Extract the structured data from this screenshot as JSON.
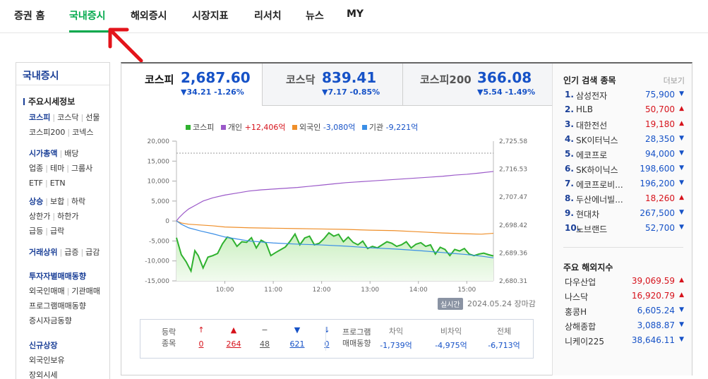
{
  "nav": {
    "items": [
      "증권 홈",
      "국내증시",
      "해외증시",
      "시장지표",
      "리서치",
      "뉴스",
      "MY"
    ],
    "active_index": 1
  },
  "sidebar": {
    "title": "국내증시",
    "section": "주요시세정보",
    "groups": [
      [
        [
          "코스피",
          "코스닥",
          "선물"
        ],
        [
          "코스피200",
          "코넥스"
        ]
      ],
      [
        [
          "시가총액",
          "배당"
        ],
        [
          "업종",
          "테마",
          "그룹사"
        ],
        [
          "ETF",
          "ETN"
        ]
      ],
      [
        [
          "상승",
          "보합",
          "하락"
        ],
        [
          "상한가",
          "하한가"
        ],
        [
          "급등",
          "급락"
        ]
      ],
      [
        [
          "거래상위",
          "급증",
          "급감"
        ]
      ],
      [
        [
          "투자자별매매동향"
        ],
        [
          "외국인매매",
          "기관매매"
        ],
        [
          "프로그램매매동향"
        ],
        [
          "증시자금동향"
        ]
      ],
      [
        [
          "신규상장"
        ],
        [
          "외국인보유"
        ],
        [
          "장외시세"
        ]
      ]
    ]
  },
  "tabs": [
    {
      "name": "코스피",
      "value": "2,687.60",
      "change": "▼34.21 -1.26%"
    },
    {
      "name": "코스닥",
      "value": "839.41",
      "change": "▼7.17 -0.85%"
    },
    {
      "name": "코스피200",
      "value": "366.08",
      "change": "▼5.54 -1.49%"
    }
  ],
  "legend": {
    "kospi": "코스피",
    "individual_label": "개인",
    "individual_value": "+12,406억",
    "foreign_label": "외국인",
    "foreign_value": "-3,080억",
    "institution_label": "기관",
    "institution_value": "-9,221억"
  },
  "chart_data": {
    "type": "line",
    "x_ticks": [
      "10:00",
      "11:00",
      "12:00",
      "13:00",
      "14:00",
      "15:00"
    ],
    "y_left_ticks": [
      "20,000",
      "15,000",
      "10,000",
      "5,000",
      "0",
      "-5,000",
      "-10,000",
      "-15,000"
    ],
    "y_left_range": [
      -15000,
      20000
    ],
    "y_right_ticks": [
      "2,725.58",
      "2,716.53",
      "2,707.47",
      "2,698.42",
      "2,689.36",
      "2,680.31"
    ],
    "y_right_range": [
      2680.31,
      2725.58
    ],
    "reference_line_right": 2721.7,
    "x_hours": [
      9.0,
      15.55
    ],
    "series": [
      {
        "name": "코스피",
        "color": "#2fb12f",
        "axis": "right",
        "x": [
          9.0,
          9.1,
          9.2,
          9.3,
          9.38,
          9.45,
          9.55,
          9.65,
          9.75,
          9.85,
          9.95,
          10.05,
          10.15,
          10.25,
          10.35,
          10.45,
          10.55,
          10.65,
          10.75,
          10.85,
          10.95,
          11.05,
          11.15,
          11.25,
          11.35,
          11.45,
          11.55,
          11.65,
          11.75,
          11.85,
          11.95,
          12.05,
          12.15,
          12.25,
          12.35,
          12.45,
          12.55,
          12.65,
          12.75,
          12.85,
          12.95,
          13.05,
          13.15,
          13.25,
          13.35,
          13.45,
          13.55,
          13.65,
          13.75,
          13.85,
          13.95,
          14.05,
          14.15,
          14.25,
          14.35,
          14.45,
          14.55,
          14.65,
          14.75,
          14.85,
          14.95,
          15.05,
          15.15,
          15.25,
          15.35,
          15.45,
          15.55
        ],
        "y": [
          2694.3,
          2688.8,
          2686.5,
          2683.5,
          2690.1,
          2688.5,
          2684.5,
          2688.0,
          2688.5,
          2689.2,
          2692.3,
          2694.5,
          2694.0,
          2691.5,
          2693.0,
          2692.8,
          2694.3,
          2691.0,
          2693.5,
          2692.6,
          2688.5,
          2689.5,
          2690.4,
          2691.3,
          2693.2,
          2695.5,
          2692.0,
          2694.2,
          2694.8,
          2692.0,
          2692.5,
          2694.0,
          2695.9,
          2694.8,
          2695.4,
          2693.0,
          2694.5,
          2692.8,
          2692.0,
          2693.2,
          2690.8,
          2691.5,
          2691.0,
          2692.0,
          2693.0,
          2692.5,
          2691.5,
          2692.0,
          2693.0,
          2691.0,
          2692.2,
          2692.7,
          2691.5,
          2692.0,
          2689.0,
          2691.2,
          2690.5,
          2688.5,
          2690.5,
          2690.0,
          2690.8,
          2689.0,
          2688.5,
          2689.0,
          2689.3,
          2688.8,
          2688.4
        ]
      },
      {
        "name": "개인",
        "color": "#9b59c9",
        "axis": "left",
        "x": [
          9.0,
          9.05,
          9.15,
          9.25,
          9.4,
          9.55,
          9.75,
          10.0,
          10.25,
          10.5,
          10.75,
          11.0,
          11.25,
          11.5,
          11.75,
          12.0,
          12.25,
          12.5,
          12.75,
          13.0,
          13.25,
          13.5,
          13.75,
          14.0,
          14.25,
          14.5,
          14.75,
          15.0,
          15.25,
          15.55
        ],
        "y": [
          0,
          800,
          2000,
          3000,
          4000,
          5000,
          5800,
          6500,
          7000,
          7500,
          7800,
          8000,
          8200,
          8400,
          8700,
          9000,
          9300,
          9600,
          9800,
          10000,
          10200,
          10400,
          10600,
          10800,
          11000,
          11200,
          11500,
          11700,
          12000,
          12406
        ]
      },
      {
        "name": "외국인",
        "color": "#ef8f2a",
        "axis": "left",
        "x": [
          9.0,
          9.1,
          9.25,
          9.5,
          9.75,
          10.0,
          10.5,
          11.0,
          11.5,
          12.0,
          12.5,
          13.0,
          13.5,
          14.0,
          14.5,
          15.0,
          15.3,
          15.55
        ],
        "y": [
          0,
          -500,
          -800,
          -1000,
          -1200,
          -1500,
          -1700,
          -1800,
          -1900,
          -2000,
          -2100,
          -2300,
          -2400,
          -2700,
          -3000,
          -3200,
          -3300,
          -3080
        ]
      },
      {
        "name": "기관",
        "color": "#3a8ee6",
        "axis": "left",
        "x": [
          9.0,
          9.1,
          9.25,
          9.5,
          9.75,
          10.0,
          10.25,
          10.5,
          11.0,
          11.5,
          12.0,
          12.5,
          13.0,
          13.5,
          14.0,
          14.5,
          15.0,
          15.3,
          15.55
        ],
        "y": [
          0,
          -800,
          -1700,
          -2500,
          -3200,
          -4000,
          -4500,
          -5000,
          -5500,
          -5800,
          -6000,
          -6300,
          -6700,
          -7000,
          -7400,
          -7900,
          -8400,
          -8800,
          -9221
        ]
      }
    ]
  },
  "realtime": {
    "badge": "실시간",
    "date": "2024.05.24 장마감"
  },
  "stats": {
    "label_line1": "등락",
    "label_line2": "종목",
    "items": [
      {
        "icon": "↑",
        "value": "0",
        "color": "#d6121b"
      },
      {
        "icon": "▲",
        "value": "264",
        "color": "#d6121b"
      },
      {
        "icon": "−",
        "value": "48",
        "color": "#555555"
      },
      {
        "icon": "▼",
        "value": "621",
        "color": "#1652c7"
      },
      {
        "icon": "↓",
        "value": "0",
        "color": "#1652c7"
      }
    ],
    "program_line1": "프로그램",
    "program_line2": "매매동향",
    "program": [
      {
        "head": "차익",
        "value": "-1,739억"
      },
      {
        "head": "비차익",
        "value": "-4,975억"
      },
      {
        "head": "전체",
        "value": "-6,713억"
      }
    ]
  },
  "popular": {
    "title": "인기 검색 종목",
    "more": "더보기",
    "items": [
      {
        "no": "1.",
        "name": "삼성전자",
        "price": "75,900",
        "dir": "down"
      },
      {
        "no": "2.",
        "name": "HLB",
        "price": "50,700",
        "dir": "up"
      },
      {
        "no": "3.",
        "name": "대한전선",
        "price": "19,180",
        "dir": "up"
      },
      {
        "no": "4.",
        "name": "SK이터닉스",
        "price": "28,350",
        "dir": "down"
      },
      {
        "no": "5.",
        "name": "에코프로",
        "price": "94,000",
        "dir": "down"
      },
      {
        "no": "6.",
        "name": "SK하이닉스",
        "price": "198,600",
        "dir": "down"
      },
      {
        "no": "7.",
        "name": "에코프로비...",
        "price": "196,200",
        "dir": "down"
      },
      {
        "no": "8.",
        "name": "두산에너빌...",
        "price": "18,260",
        "dir": "up"
      },
      {
        "no": "9.",
        "name": "현대차",
        "price": "267,500",
        "dir": "down"
      },
      {
        "no": "10.",
        "name": "노브랜드",
        "price": "52,700",
        "dir": "down"
      }
    ]
  },
  "global_index": {
    "title": "주요 해외지수",
    "items": [
      {
        "name": "다우산업",
        "value": "39,069.59",
        "dir": "up"
      },
      {
        "name": "나스닥",
        "value": "16,920.79",
        "dir": "up"
      },
      {
        "name": "홍콩H",
        "value": "6,605.24",
        "dir": "down"
      },
      {
        "name": "상해종합",
        "value": "3,088.87",
        "dir": "down"
      },
      {
        "name": "니케이225",
        "value": "38,646.11",
        "dir": "down"
      }
    ]
  },
  "colors": {
    "accent_green": "#03a94d",
    "up": "#d6121b",
    "down": "#1652c7"
  }
}
